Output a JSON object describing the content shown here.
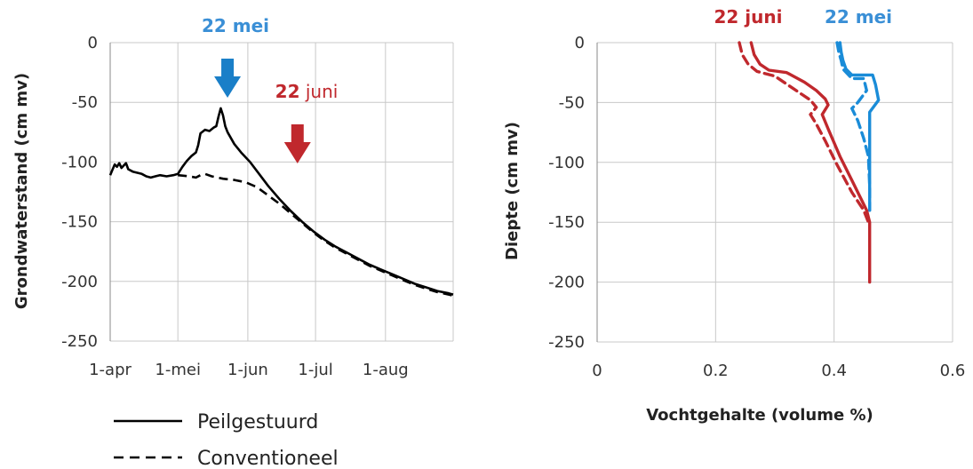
{
  "chart_data": [
    {
      "type": "line",
      "ylabel": "Grondwaterstand (cm mv)",
      "xlabel": "",
      "x_ticks": [
        "1-apr",
        "1-mei",
        "1-jun",
        "1-jul",
        "1-aug"
      ],
      "x_tick_days": [
        0,
        30,
        61,
        91,
        122
      ],
      "xlim_days": [
        0,
        152
      ],
      "ylim": [
        -250,
        0
      ],
      "y_ticks": [
        0,
        -50,
        -100,
        -150,
        -200,
        -250
      ],
      "grid": true,
      "legend_position": "bottom-left",
      "series": [
        {
          "name": "Peilgestuurd",
          "style": "solid",
          "color": "#000000",
          "points": [
            [
              0,
              -111
            ],
            [
              2,
              -102
            ],
            [
              3,
              -104
            ],
            [
              4,
              -101
            ],
            [
              5,
              -105
            ],
            [
              6,
              -103
            ],
            [
              7,
              -101
            ],
            [
              8,
              -106
            ],
            [
              10,
              -108
            ],
            [
              12,
              -109
            ],
            [
              14,
              -110
            ],
            [
              16,
              -112
            ],
            [
              18,
              -113
            ],
            [
              20,
              -112
            ],
            [
              22,
              -111
            ],
            [
              25,
              -112
            ],
            [
              28,
              -111
            ],
            [
              30,
              -110
            ],
            [
              32,
              -104
            ],
            [
              34,
              -99
            ],
            [
              36,
              -95
            ],
            [
              38,
              -92
            ],
            [
              39,
              -86
            ],
            [
              40,
              -76
            ],
            [
              42,
              -73
            ],
            [
              44,
              -74
            ],
            [
              46,
              -71
            ],
            [
              47,
              -70
            ],
            [
              48,
              -62
            ],
            [
              49,
              -55
            ],
            [
              50,
              -61
            ],
            [
              51,
              -70
            ],
            [
              52,
              -75
            ],
            [
              55,
              -85
            ],
            [
              58,
              -92
            ],
            [
              62,
              -100
            ],
            [
              66,
              -110
            ],
            [
              70,
              -120
            ],
            [
              75,
              -131
            ],
            [
              80,
              -141
            ],
            [
              85,
              -150
            ],
            [
              90,
              -158
            ],
            [
              95,
              -165
            ],
            [
              100,
              -171
            ],
            [
              105,
              -176
            ],
            [
              110,
              -181
            ],
            [
              115,
              -186
            ],
            [
              120,
              -190
            ],
            [
              125,
              -194
            ],
            [
              130,
              -198
            ],
            [
              135,
              -202
            ],
            [
              140,
              -205
            ],
            [
              145,
              -208
            ],
            [
              150,
              -210
            ],
            [
              152,
              -211
            ]
          ]
        },
        {
          "name": "Conventioneel",
          "style": "dashed",
          "color": "#000000",
          "points": [
            [
              30,
              -111
            ],
            [
              35,
              -112
            ],
            [
              38,
              -113
            ],
            [
              40,
              -111
            ],
            [
              42,
              -110
            ],
            [
              45,
              -112
            ],
            [
              50,
              -114
            ],
            [
              55,
              -115
            ],
            [
              60,
              -117
            ],
            [
              65,
              -121
            ],
            [
              70,
              -128
            ],
            [
              75,
              -135
            ],
            [
              80,
              -143
            ],
            [
              85,
              -151
            ],
            [
              90,
              -159
            ],
            [
              95,
              -166
            ],
            [
              100,
              -172
            ],
            [
              105,
              -177
            ],
            [
              110,
              -182
            ],
            [
              115,
              -187
            ],
            [
              120,
              -191
            ],
            [
              125,
              -195
            ],
            [
              130,
              -199
            ],
            [
              135,
              -203
            ],
            [
              140,
              -206
            ],
            [
              145,
              -209
            ],
            [
              150,
              -211
            ],
            [
              152,
              -212
            ]
          ]
        }
      ],
      "annotations": [
        {
          "text_bold": "22 mei",
          "text_normal": "",
          "color": "#3a8fd6",
          "arrow_x_day": 52,
          "arrow_color": "#1a7fc8"
        },
        {
          "text_bold": "22",
          "text_normal": " juni",
          "color": "#c0282d",
          "arrow_x_day": 83,
          "arrow_color": "#c0282d"
        }
      ]
    },
    {
      "type": "line",
      "xlabel": "Vochtgehalte (volume %)",
      "ylabel": "Diepte (cm mv)",
      "xlim": [
        0,
        0.6
      ],
      "x_ticks": [
        0,
        0.2,
        0.4,
        0.6
      ],
      "ylim": [
        -250,
        0
      ],
      "y_ticks": [
        0,
        -50,
        -100,
        -150,
        -200,
        -250
      ],
      "grid": true,
      "series_labels": [
        {
          "text": "22 juni",
          "color": "#c0282d"
        },
        {
          "text": "22 mei",
          "color": "#3a8fd6"
        }
      ],
      "series": [
        {
          "label": "22 mei Peilgestuurd",
          "style": "solid",
          "color": "#1a8cd8",
          "points": [
            [
              0.41,
              0
            ],
            [
              0.412,
              -8
            ],
            [
              0.415,
              -15
            ],
            [
              0.42,
              -22
            ],
            [
              0.43,
              -27
            ],
            [
              0.465,
              -27
            ],
            [
              0.47,
              -35
            ],
            [
              0.475,
              -48
            ],
            [
              0.46,
              -58
            ],
            [
              0.46,
              -100
            ],
            [
              0.46,
              -140
            ]
          ]
        },
        {
          "label": "22 mei Conventioneel",
          "style": "dashed",
          "color": "#1a8cd8",
          "points": [
            [
              0.405,
              0
            ],
            [
              0.408,
              -8
            ],
            [
              0.412,
              -15
            ],
            [
              0.415,
              -22
            ],
            [
              0.43,
              -30
            ],
            [
              0.45,
              -30
            ],
            [
              0.455,
              -40
            ],
            [
              0.44,
              -50
            ],
            [
              0.43,
              -55
            ],
            [
              0.44,
              -65
            ],
            [
              0.45,
              -80
            ],
            [
              0.458,
              -95
            ],
            [
              0.46,
              -120
            ],
            [
              0.46,
              -140
            ]
          ]
        },
        {
          "label": "22 juni Peilgestuurd",
          "style": "solid",
          "color": "#c0282d",
          "points": [
            [
              0.26,
              0
            ],
            [
              0.265,
              -10
            ],
            [
              0.275,
              -18
            ],
            [
              0.29,
              -23
            ],
            [
              0.32,
              -25
            ],
            [
              0.35,
              -33
            ],
            [
              0.37,
              -40
            ],
            [
              0.385,
              -47
            ],
            [
              0.39,
              -52
            ],
            [
              0.38,
              -60
            ],
            [
              0.39,
              -72
            ],
            [
              0.41,
              -95
            ],
            [
              0.43,
              -115
            ],
            [
              0.445,
              -130
            ],
            [
              0.455,
              -140
            ],
            [
              0.46,
              -150
            ],
            [
              0.46,
              -175
            ],
            [
              0.46,
              -200
            ]
          ]
        },
        {
          "label": "22 juni Conventioneel",
          "style": "dashed",
          "color": "#c0282d",
          "points": [
            [
              0.24,
              0
            ],
            [
              0.245,
              -10
            ],
            [
              0.255,
              -18
            ],
            [
              0.27,
              -24
            ],
            [
              0.3,
              -28
            ],
            [
              0.33,
              -38
            ],
            [
              0.36,
              -48
            ],
            [
              0.37,
              -54
            ],
            [
              0.36,
              -60
            ],
            [
              0.37,
              -68
            ],
            [
              0.385,
              -82
            ],
            [
              0.405,
              -102
            ],
            [
              0.43,
              -125
            ],
            [
              0.45,
              -140
            ],
            [
              0.458,
              -150
            ]
          ]
        }
      ]
    }
  ]
}
